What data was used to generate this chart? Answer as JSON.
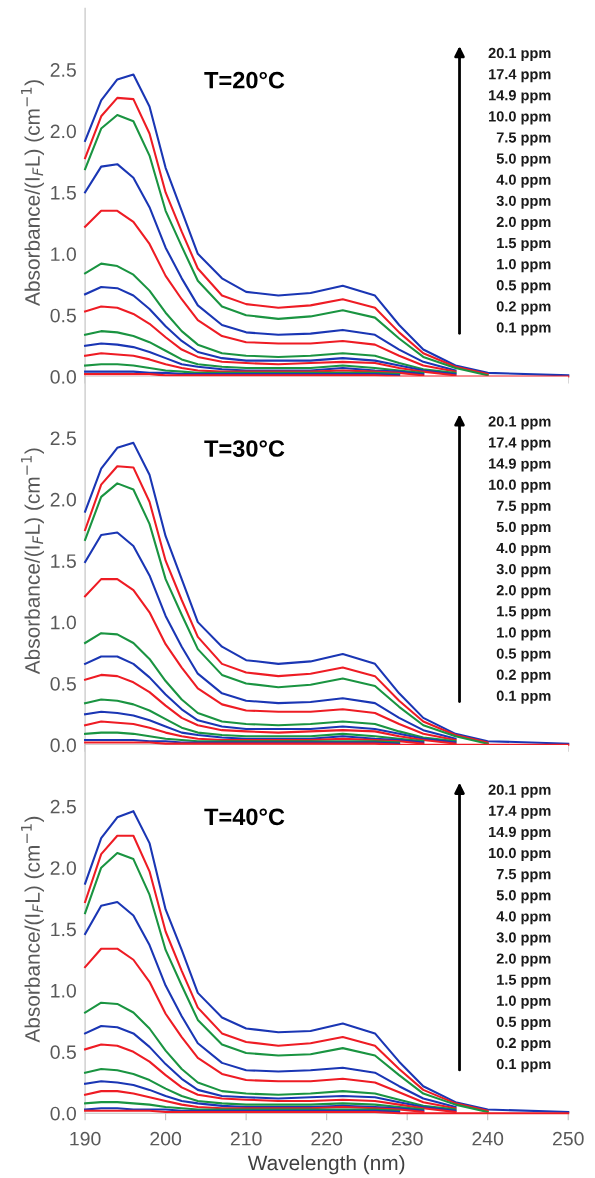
{
  "chart_data": [
    {
      "type": "line",
      "title": "T=20°C",
      "ylabel": "Absorbance/(I$_{F}$L) (cm$^{−1}$)",
      "tick_labels": "y",
      "annotations": [
        "20.1 ppm",
        "17.4 ppm",
        "14.9 ppm",
        "10.0 ppm",
        "7.5 ppm",
        "5.0 ppm",
        "4.0 ppm",
        "3.0 ppm",
        "2.0 ppm",
        "1.5 ppm",
        "1.0 ppm",
        "0.5 ppm",
        "0.2 ppm",
        "0.1 ppm"
      ],
      "x": [
        190,
        192,
        194,
        196,
        198,
        200,
        202,
        204,
        207,
        210,
        214,
        218,
        222,
        226,
        229,
        232,
        236,
        240,
        250
      ],
      "xlim": [
        190,
        250
      ],
      "xticks": [
        190,
        200,
        210,
        220,
        230,
        240,
        250
      ],
      "ylim": [
        0,
        3
      ],
      "yticks": [
        {
          "value": 0,
          "label": "0.0"
        },
        {
          "value": 0.5,
          "label": "0.5"
        },
        {
          "value": 1,
          "label": "1.0"
        },
        {
          "value": 1.5,
          "label": "1.5"
        },
        {
          "value": 2,
          "label": "2.0"
        },
        {
          "value": 2.5,
          "label": "2.5"
        }
      ],
      "series": [
        {
          "color": "#1a36b4",
          "values": [
            1.92,
            2.25,
            2.42,
            2.46,
            2.2,
            1.7,
            1.35,
            1.0,
            0.8,
            0.69,
            0.66,
            0.68,
            0.74,
            0.66,
            0.42,
            0.22,
            0.09,
            0.03,
            0.01
          ]
        },
        {
          "color": "#ee1c24",
          "values": [
            1.78,
            2.12,
            2.27,
            2.26,
            1.98,
            1.5,
            1.18,
            0.88,
            0.66,
            0.59,
            0.56,
            0.58,
            0.63,
            0.56,
            0.36,
            0.19,
            0.08,
            0.02,
            null
          ]
        },
        {
          "color": "#1a9441",
          "values": [
            1.69,
            2.02,
            2.13,
            2.08,
            1.8,
            1.35,
            1.06,
            0.78,
            0.57,
            0.5,
            0.47,
            0.49,
            0.54,
            0.48,
            0.31,
            0.16,
            0.07,
            0.01,
            null
          ]
        },
        {
          "color": "#1a36b4",
          "values": [
            1.5,
            1.71,
            1.73,
            1.62,
            1.38,
            1.05,
            0.8,
            0.58,
            0.42,
            0.36,
            0.34,
            0.35,
            0.38,
            0.34,
            0.22,
            0.12,
            0.05,
            null,
            null
          ]
        },
        {
          "color": "#ee1c24",
          "values": [
            1.22,
            1.35,
            1.35,
            1.26,
            1.08,
            0.82,
            0.63,
            0.46,
            0.33,
            0.28,
            0.27,
            0.27,
            0.29,
            0.26,
            0.17,
            0.09,
            0.04,
            null,
            null
          ]
        },
        {
          "color": "#1a9441",
          "values": [
            0.84,
            0.92,
            0.9,
            0.83,
            0.7,
            0.52,
            0.37,
            0.26,
            0.19,
            0.17,
            0.16,
            0.17,
            0.19,
            0.17,
            0.11,
            0.06,
            0.03,
            null,
            null
          ]
        },
        {
          "color": "#1a36b4",
          "values": [
            0.67,
            0.73,
            0.72,
            0.66,
            0.55,
            0.41,
            0.29,
            0.2,
            0.15,
            0.13,
            0.13,
            0.13,
            0.15,
            0.13,
            0.09,
            0.05,
            0.02,
            null,
            null
          ]
        },
        {
          "color": "#ee1c24",
          "values": [
            0.53,
            0.57,
            0.56,
            0.51,
            0.43,
            0.32,
            0.22,
            0.16,
            0.12,
            0.11,
            0.1,
            0.11,
            0.12,
            0.11,
            0.07,
            0.04,
            0.01,
            null,
            null
          ]
        },
        {
          "color": "#1a9441",
          "values": [
            0.34,
            0.37,
            0.36,
            0.33,
            0.28,
            0.21,
            0.14,
            0.1,
            0.08,
            0.07,
            0.07,
            0.07,
            0.09,
            0.07,
            0.05,
            0.03,
            null,
            null,
            null
          ]
        },
        {
          "color": "#1a36b4",
          "values": [
            0.25,
            0.27,
            0.26,
            0.24,
            0.2,
            0.15,
            0.1,
            0.08,
            0.06,
            0.05,
            0.05,
            0.05,
            0.07,
            0.05,
            0.04,
            0.02,
            null,
            null,
            null
          ]
        },
        {
          "color": "#ee1c24",
          "values": [
            0.17,
            0.19,
            0.18,
            0.17,
            0.14,
            0.1,
            0.07,
            0.05,
            0.04,
            0.04,
            0.04,
            0.04,
            0.05,
            0.04,
            0.03,
            0.01,
            null,
            null,
            null
          ]
        },
        {
          "color": "#1a9441",
          "values": [
            0.09,
            0.1,
            0.1,
            0.09,
            0.07,
            0.05,
            0.04,
            0.03,
            0.03,
            0.03,
            0.03,
            0.03,
            0.03,
            0.03,
            0.02,
            null,
            null,
            null,
            null
          ]
        },
        {
          "color": "#1a36b4",
          "values": [
            0.04,
            0.04,
            0.04,
            0.04,
            0.03,
            0.03,
            0.02,
            0.02,
            0.02,
            0.02,
            0.02,
            0.02,
            0.02,
            0.02,
            0.01,
            null,
            null,
            null,
            null
          ]
        },
        {
          "color": "#ee1c24",
          "values": [
            0.02,
            0.02,
            0.02,
            0.02,
            0.02,
            0.01,
            0.01,
            0.01,
            0.01,
            0.01,
            0.01,
            0.01,
            0.01,
            0.01,
            0.0,
            0.0,
            0.0,
            0.0,
            0.0
          ]
        }
      ]
    },
    {
      "type": "line",
      "title": "T=30°C",
      "ylabel": "Absorbance/(I$_{F}$L) (cm$^{−1}$)",
      "tick_labels": "y",
      "annotations": [
        "20.1 ppm",
        "17.4 ppm",
        "14.9 ppm",
        "10.0 ppm",
        "7.5 ppm",
        "5.0 ppm",
        "4.0 ppm",
        "3.0 ppm",
        "2.0 ppm",
        "1.5 ppm",
        "1.0 ppm",
        "0.5 ppm",
        "0.2 ppm",
        "0.1 ppm"
      ],
      "x": [
        190,
        192,
        194,
        196,
        198,
        200,
        202,
        204,
        207,
        210,
        214,
        218,
        222,
        226,
        229,
        232,
        236,
        240,
        250
      ],
      "xlim": [
        190,
        250
      ],
      "xticks": [
        190,
        200,
        210,
        220,
        230,
        240,
        250
      ],
      "ylim": [
        0,
        3
      ],
      "yticks": [
        {
          "value": 0,
          "label": "0.0"
        },
        {
          "value": 0.5,
          "label": "0.5"
        },
        {
          "value": 1,
          "label": "1.0"
        },
        {
          "value": 1.5,
          "label": "1.5"
        },
        {
          "value": 2,
          "label": "2.0"
        },
        {
          "value": 2.5,
          "label": "2.5"
        }
      ],
      "series": [
        {
          "color": "#1a36b4",
          "values": [
            1.9,
            2.25,
            2.42,
            2.46,
            2.2,
            1.7,
            1.35,
            1.0,
            0.8,
            0.69,
            0.66,
            0.68,
            0.74,
            0.66,
            0.42,
            0.22,
            0.09,
            0.03,
            0.01
          ]
        },
        {
          "color": "#ee1c24",
          "values": [
            1.75,
            2.12,
            2.27,
            2.26,
            1.98,
            1.5,
            1.18,
            0.88,
            0.66,
            0.59,
            0.56,
            0.58,
            0.63,
            0.56,
            0.36,
            0.19,
            0.08,
            0.02,
            null
          ]
        },
        {
          "color": "#1a9441",
          "values": [
            1.67,
            2.02,
            2.13,
            2.08,
            1.8,
            1.35,
            1.06,
            0.78,
            0.57,
            0.5,
            0.47,
            0.49,
            0.54,
            0.48,
            0.31,
            0.16,
            0.07,
            0.01,
            null
          ]
        },
        {
          "color": "#1a36b4",
          "values": [
            1.49,
            1.71,
            1.73,
            1.62,
            1.38,
            1.05,
            0.8,
            0.58,
            0.42,
            0.36,
            0.34,
            0.35,
            0.38,
            0.34,
            0.22,
            0.12,
            0.05,
            null,
            null
          ]
        },
        {
          "color": "#ee1c24",
          "values": [
            1.21,
            1.35,
            1.35,
            1.26,
            1.08,
            0.82,
            0.63,
            0.46,
            0.33,
            0.28,
            0.27,
            0.27,
            0.29,
            0.26,
            0.17,
            0.09,
            0.04,
            null,
            null
          ]
        },
        {
          "color": "#1a9441",
          "values": [
            0.83,
            0.91,
            0.9,
            0.83,
            0.7,
            0.52,
            0.37,
            0.26,
            0.19,
            0.17,
            0.16,
            0.17,
            0.19,
            0.17,
            0.11,
            0.06,
            0.03,
            null,
            null
          ]
        },
        {
          "color": "#1a36b4",
          "values": [
            0.66,
            0.72,
            0.72,
            0.66,
            0.55,
            0.41,
            0.29,
            0.2,
            0.15,
            0.13,
            0.13,
            0.13,
            0.15,
            0.13,
            0.09,
            0.05,
            0.02,
            null,
            null
          ]
        },
        {
          "color": "#ee1c24",
          "values": [
            0.53,
            0.57,
            0.56,
            0.51,
            0.43,
            0.32,
            0.22,
            0.16,
            0.12,
            0.11,
            0.1,
            0.11,
            0.12,
            0.11,
            0.07,
            0.04,
            0.01,
            null,
            null
          ]
        },
        {
          "color": "#1a9441",
          "values": [
            0.34,
            0.37,
            0.36,
            0.33,
            0.28,
            0.21,
            0.14,
            0.1,
            0.08,
            0.07,
            0.07,
            0.07,
            0.09,
            0.07,
            0.05,
            0.03,
            null,
            null,
            null
          ]
        },
        {
          "color": "#1a36b4",
          "values": [
            0.25,
            0.27,
            0.26,
            0.24,
            0.2,
            0.15,
            0.1,
            0.08,
            0.06,
            0.05,
            0.05,
            0.05,
            0.07,
            0.05,
            0.04,
            0.02,
            null,
            null,
            null
          ]
        },
        {
          "color": "#ee1c24",
          "values": [
            0.16,
            0.19,
            0.18,
            0.17,
            0.14,
            0.1,
            0.07,
            0.05,
            0.04,
            0.04,
            0.04,
            0.04,
            0.05,
            0.04,
            0.03,
            0.01,
            null,
            null,
            null
          ]
        },
        {
          "color": "#1a9441",
          "values": [
            0.09,
            0.1,
            0.1,
            0.09,
            0.07,
            0.05,
            0.04,
            0.03,
            0.03,
            0.03,
            0.03,
            0.03,
            0.03,
            0.03,
            0.02,
            null,
            null,
            null,
            null
          ]
        },
        {
          "color": "#1a36b4",
          "values": [
            0.04,
            0.04,
            0.04,
            0.04,
            0.03,
            0.03,
            0.02,
            0.02,
            0.02,
            0.02,
            0.02,
            0.02,
            0.02,
            0.02,
            0.01,
            null,
            null,
            null,
            null
          ]
        },
        {
          "color": "#ee1c24",
          "values": [
            0.02,
            0.02,
            0.02,
            0.02,
            0.02,
            0.01,
            0.01,
            0.01,
            0.01,
            0.01,
            0.01,
            0.01,
            0.01,
            0.01,
            0.0,
            0.0,
            0.0,
            0.0,
            0.0
          ]
        }
      ]
    },
    {
      "type": "line",
      "title": "T=40°C",
      "ylabel": "Absorbance/(I$_{F}$L) (cm$^{−1}$)",
      "xlabel": "Wavelength (nm)",
      "annotations": [
        "20.1 ppm",
        "17.4 ppm",
        "14.9 ppm",
        "10.0 ppm",
        "7.5 ppm",
        "5.0 ppm",
        "4.0 ppm",
        "3.0 ppm",
        "2.0 ppm",
        "1.5 ppm",
        "1.0 ppm",
        "0.5 ppm",
        "0.2 ppm",
        "0.1 ppm"
      ],
      "x": [
        190,
        192,
        194,
        196,
        198,
        200,
        202,
        204,
        207,
        210,
        214,
        218,
        222,
        226,
        229,
        232,
        236,
        240,
        250
      ],
      "xlim": [
        190,
        250
      ],
      "xticks": [
        190,
        200,
        210,
        220,
        230,
        240,
        250
      ],
      "ylim": [
        0,
        3
      ],
      "yticks": [
        {
          "value": 0,
          "label": "0.0"
        },
        {
          "value": 0.5,
          "label": "0.5"
        },
        {
          "value": 1,
          "label": "1.0"
        },
        {
          "value": 1.5,
          "label": "1.5"
        },
        {
          "value": 2,
          "label": "2.0"
        },
        {
          "value": 2.5,
          "label": "2.5"
        }
      ],
      "series": [
        {
          "color": "#1a36b4",
          "values": [
            1.87,
            2.24,
            2.41,
            2.46,
            2.2,
            1.66,
            1.33,
            0.98,
            0.78,
            0.69,
            0.66,
            0.67,
            0.73,
            0.65,
            0.42,
            0.22,
            0.09,
            0.03,
            0.01
          ]
        },
        {
          "color": "#ee1c24",
          "values": [
            1.72,
            2.11,
            2.26,
            2.26,
            1.97,
            1.48,
            1.16,
            0.86,
            0.65,
            0.58,
            0.55,
            0.57,
            0.62,
            0.55,
            0.36,
            0.19,
            0.08,
            0.02,
            null
          ]
        },
        {
          "color": "#1a9441",
          "values": [
            1.63,
            2.0,
            2.12,
            2.07,
            1.78,
            1.33,
            1.04,
            0.76,
            0.56,
            0.49,
            0.47,
            0.48,
            0.53,
            0.47,
            0.31,
            0.16,
            0.07,
            0.01,
            null
          ]
        },
        {
          "color": "#1a36b4",
          "values": [
            1.46,
            1.69,
            1.72,
            1.61,
            1.37,
            1.04,
            0.79,
            0.57,
            0.41,
            0.35,
            0.34,
            0.35,
            0.37,
            0.33,
            0.22,
            0.12,
            0.05,
            null,
            null
          ]
        },
        {
          "color": "#ee1c24",
          "values": [
            1.19,
            1.34,
            1.34,
            1.25,
            1.07,
            0.81,
            0.62,
            0.45,
            0.32,
            0.27,
            0.26,
            0.26,
            0.28,
            0.25,
            0.17,
            0.09,
            0.04,
            null,
            null
          ]
        },
        {
          "color": "#1a9441",
          "values": [
            0.82,
            0.9,
            0.89,
            0.82,
            0.69,
            0.51,
            0.36,
            0.25,
            0.18,
            0.16,
            0.15,
            0.16,
            0.18,
            0.16,
            0.11,
            0.06,
            0.03,
            null,
            null
          ]
        },
        {
          "color": "#1a36b4",
          "values": [
            0.65,
            0.71,
            0.7,
            0.65,
            0.54,
            0.4,
            0.28,
            0.19,
            0.14,
            0.13,
            0.12,
            0.13,
            0.14,
            0.13,
            0.09,
            0.05,
            0.02,
            null,
            null
          ]
        },
        {
          "color": "#ee1c24",
          "values": [
            0.52,
            0.56,
            0.55,
            0.5,
            0.42,
            0.31,
            0.21,
            0.15,
            0.12,
            0.11,
            0.1,
            0.1,
            0.11,
            0.1,
            0.07,
            0.04,
            0.01,
            null,
            null
          ]
        },
        {
          "color": "#1a9441",
          "values": [
            0.33,
            0.36,
            0.35,
            0.32,
            0.27,
            0.2,
            0.14,
            0.1,
            0.08,
            0.07,
            0.07,
            0.07,
            0.08,
            0.07,
            0.05,
            0.03,
            null,
            null,
            null
          ]
        },
        {
          "color": "#1a36b4",
          "values": [
            0.24,
            0.26,
            0.25,
            0.23,
            0.19,
            0.14,
            0.1,
            0.08,
            0.06,
            0.05,
            0.05,
            0.05,
            0.06,
            0.05,
            0.04,
            0.02,
            null,
            null,
            null
          ]
        },
        {
          "color": "#ee1c24",
          "values": [
            0.15,
            0.18,
            0.18,
            0.16,
            0.13,
            0.1,
            0.07,
            0.05,
            0.04,
            0.04,
            0.04,
            0.04,
            0.05,
            0.04,
            0.03,
            0.01,
            null,
            null,
            null
          ]
        },
        {
          "color": "#1a9441",
          "values": [
            0.08,
            0.09,
            0.09,
            0.08,
            0.07,
            0.05,
            0.04,
            0.03,
            0.03,
            0.03,
            0.03,
            0.03,
            0.03,
            0.03,
            0.02,
            null,
            null,
            null,
            null
          ]
        },
        {
          "color": "#1a36b4",
          "values": [
            0.03,
            0.04,
            0.04,
            0.03,
            0.03,
            0.03,
            0.02,
            0.02,
            0.02,
            0.02,
            0.02,
            0.02,
            0.02,
            0.02,
            0.01,
            null,
            null,
            null,
            null
          ]
        },
        {
          "color": "#ee1c24",
          "values": [
            0.02,
            0.02,
            0.02,
            0.02,
            0.02,
            0.01,
            0.01,
            0.01,
            0.01,
            0.01,
            0.01,
            0.01,
            0.01,
            0.01,
            0.0,
            0.0,
            0.0,
            0.0,
            0.0
          ]
        }
      ]
    }
  ]
}
